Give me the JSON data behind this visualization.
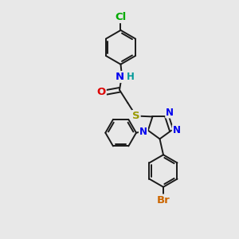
{
  "bg_color": "#e8e8e8",
  "bond_color": "#1a1a1a",
  "bond_width": 1.4,
  "atom_colors": {
    "C": "#1a1a1a",
    "N": "#0000ee",
    "O": "#dd0000",
    "S": "#999900",
    "Cl": "#00aa00",
    "Br": "#cc6600",
    "H": "#009999"
  },
  "font_size": 8.5,
  "fig_size": [
    3.0,
    3.0
  ],
  "dpi": 100
}
